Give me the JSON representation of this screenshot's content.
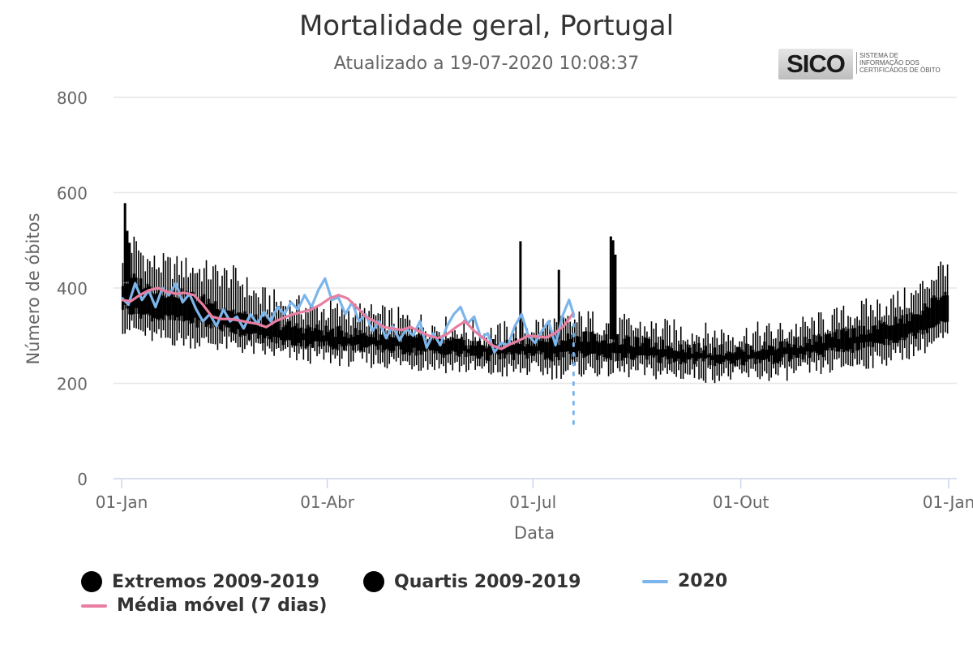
{
  "title": "Mortalidade geral, Portugal",
  "subtitle": "Atualizado a 19-07-2020 10:08:37",
  "logo": {
    "name": "SICO",
    "desc": "SISTEMA DE INFORMAÇÃO DOS CERTIFICADOS DE ÓBITO"
  },
  "colors": {
    "extremos": "#000000",
    "quartis": "#000000",
    "series2020": "#7cb5ec",
    "media": "#e87fa2",
    "grid": "#e6e6e6",
    "axis": "#ccd6eb"
  },
  "chart_data": {
    "type": "line",
    "title": "Mortalidade geral, Portugal",
    "subtitle": "Atualizado a 19-07-2020 10:08:37",
    "xlabel": "Data",
    "ylabel": "Número de óbitos",
    "xlim_day_of_year": [
      0,
      366
    ],
    "ylim": [
      0,
      800
    ],
    "yticks": [
      0,
      200,
      400,
      600,
      800
    ],
    "xticks": [
      {
        "day": 0,
        "label": "01-Jan"
      },
      {
        "day": 91,
        "label": "01-Abr"
      },
      {
        "day": 182,
        "label": "01-Jul"
      },
      {
        "day": 274,
        "label": "01-Out"
      },
      {
        "day": 366,
        "label": "01-Jan"
      }
    ],
    "legend_position": "bottom",
    "legend": {
      "extremos": "Extremos 2009-2019",
      "quartis": "Quartis 2009-2019",
      "series2020": "2020",
      "media": "Média móvel (7 dias)"
    },
    "band_anchor_days": [
      0,
      5,
      12,
      20,
      30,
      40,
      50,
      60,
      75,
      91,
      105,
      120,
      135,
      150,
      165,
      182,
      190,
      205,
      220,
      240,
      260,
      274,
      290,
      305,
      320,
      335,
      350,
      366
    ],
    "extremos_max": [
      470,
      490,
      450,
      445,
      440,
      430,
      420,
      380,
      360,
      350,
      345,
      335,
      320,
      310,
      300,
      320,
      320,
      330,
      320,
      310,
      300,
      300,
      305,
      320,
      340,
      360,
      380,
      460
    ],
    "q3": [
      410,
      420,
      400,
      390,
      385,
      370,
      350,
      330,
      320,
      310,
      305,
      300,
      290,
      285,
      280,
      290,
      290,
      300,
      290,
      280,
      270,
      270,
      280,
      290,
      305,
      320,
      340,
      400
    ],
    "q1": [
      360,
      350,
      340,
      335,
      330,
      320,
      310,
      295,
      285,
      280,
      275,
      270,
      265,
      260,
      255,
      260,
      255,
      260,
      255,
      250,
      245,
      245,
      250,
      260,
      270,
      285,
      300,
      340
    ],
    "extremos_min": [
      320,
      315,
      300,
      295,
      290,
      285,
      280,
      270,
      260,
      255,
      250,
      245,
      240,
      235,
      225,
      230,
      225,
      230,
      228,
      222,
      218,
      218,
      220,
      230,
      240,
      250,
      270,
      300
    ],
    "peaks": [
      {
        "day": 1,
        "value": 578
      },
      {
        "day": 2,
        "value": 520
      },
      {
        "day": 3,
        "value": 495
      },
      {
        "day": 176,
        "value": 498
      },
      {
        "day": 193,
        "value": 438
      },
      {
        "day": 216,
        "value": 508
      },
      {
        "day": 217,
        "value": 500
      },
      {
        "day": 218,
        "value": 470
      }
    ],
    "series_2020": {
      "days": [
        0,
        3,
        6,
        9,
        12,
        15,
        18,
        21,
        24,
        27,
        30,
        33,
        36,
        39,
        42,
        45,
        48,
        51,
        54,
        57,
        60,
        63,
        66,
        69,
        72,
        75,
        78,
        81,
        84,
        87,
        90,
        93,
        96,
        99,
        102,
        105,
        108,
        111,
        114,
        117,
        120,
        123,
        126,
        129,
        132,
        135,
        138,
        141,
        144,
        147,
        150,
        153,
        156,
        159,
        162,
        165,
        168,
        171,
        174,
        177,
        180,
        183,
        186,
        189,
        192,
        195,
        198,
        200
      ],
      "values": [
        380,
        365,
        410,
        375,
        395,
        360,
        400,
        385,
        410,
        370,
        388,
        355,
        330,
        345,
        320,
        355,
        330,
        340,
        315,
        345,
        325,
        350,
        330,
        360,
        345,
        370,
        355,
        385,
        360,
        395,
        420,
        375,
        380,
        345,
        370,
        330,
        345,
        310,
        330,
        295,
        320,
        290,
        315,
        300,
        330,
        275,
        305,
        280,
        320,
        345,
        360,
        325,
        340,
        295,
        305,
        265,
        285,
        280,
        320,
        345,
        300,
        285,
        310,
        330,
        280,
        340,
        375,
        345
      ]
    },
    "media_movel_7d": {
      "days": [
        0,
        4,
        8,
        12,
        16,
        20,
        24,
        28,
        32,
        36,
        40,
        44,
        48,
        52,
        56,
        60,
        64,
        68,
        72,
        76,
        80,
        84,
        88,
        92,
        96,
        100,
        104,
        108,
        112,
        116,
        120,
        124,
        128,
        132,
        136,
        140,
        144,
        148,
        152,
        156,
        160,
        164,
        168,
        172,
        176,
        180,
        184,
        188,
        192,
        196,
        200
      ],
      "values": [
        375,
        372,
        385,
        395,
        400,
        392,
        388,
        390,
        385,
        365,
        340,
        335,
        335,
        332,
        328,
        325,
        318,
        330,
        338,
        345,
        350,
        355,
        365,
        378,
        385,
        378,
        360,
        340,
        330,
        318,
        315,
        312,
        318,
        308,
        300,
        295,
        303,
        318,
        330,
        310,
        295,
        280,
        272,
        282,
        290,
        300,
        298,
        296,
        306,
        322,
        348
      ]
    },
    "data_end_marker": {
      "day": 200,
      "value_top": 345,
      "value_bottom": 115
    }
  }
}
